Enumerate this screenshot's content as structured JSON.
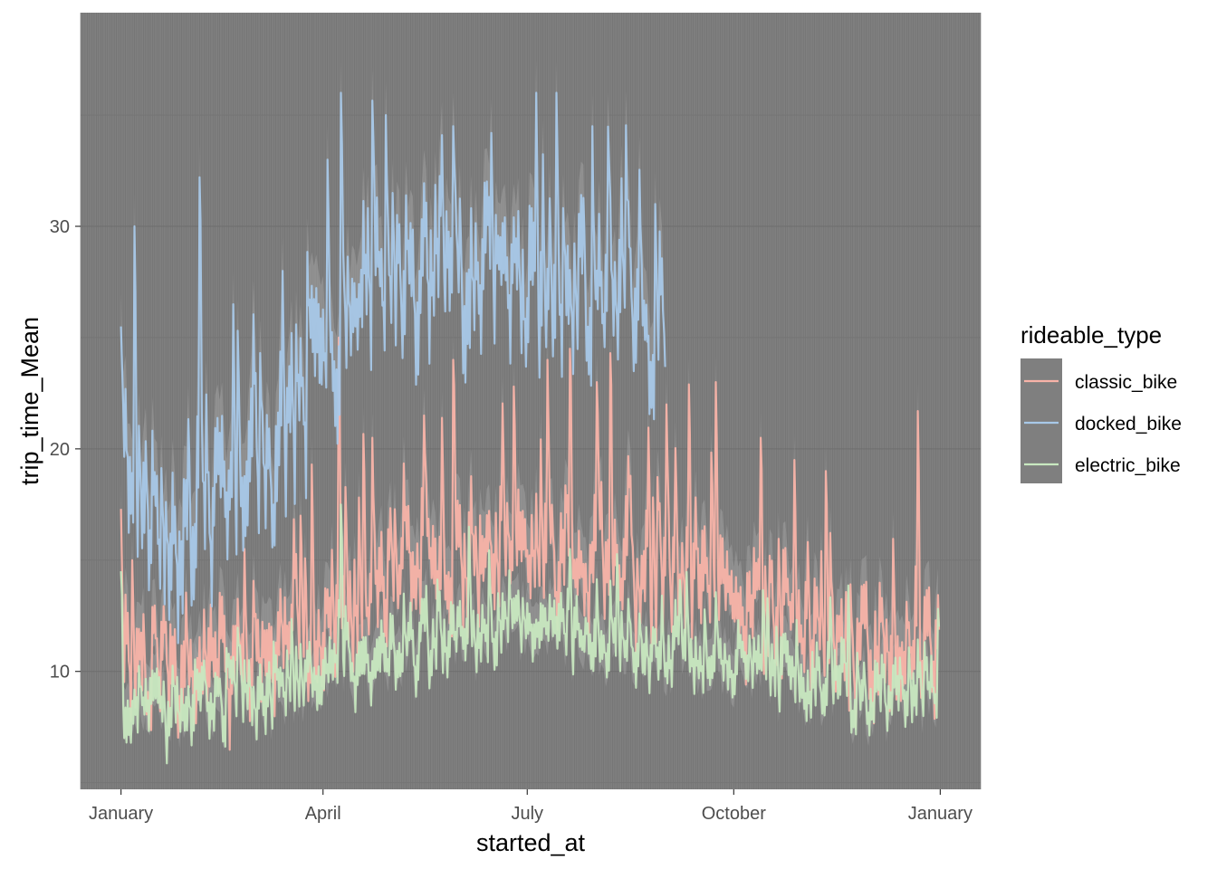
{
  "chart_data": {
    "type": "line",
    "title": "",
    "xlabel": "started_at",
    "ylabel": "trip_time_Mean",
    "x_ticks": [
      {
        "label": "January",
        "day": 0
      },
      {
        "label": "April",
        "day": 90
      },
      {
        "label": "July",
        "day": 181
      },
      {
        "label": "October",
        "day": 273
      },
      {
        "label": "January",
        "day": 365
      }
    ],
    "y_ticks": [
      10,
      20,
      30
    ],
    "xlim": [
      -18,
      383
    ],
    "ylim": [
      4.7,
      39.6
    ],
    "x_data_range": [
      0,
      364
    ],
    "grid": true,
    "panel_background": "#7f7f7f",
    "legend": {
      "title": "rideable_type",
      "position": "right",
      "background": "#7f7f7f"
    },
    "series": [
      {
        "name": "classic_bike",
        "color": "#f8b3a8",
        "x_start": 0,
        "x_end": 364,
        "baseline": [
          [
            0,
            11.5
          ],
          [
            30,
            11
          ],
          [
            60,
            11.5
          ],
          [
            90,
            13
          ],
          [
            120,
            15
          ],
          [
            150,
            16
          ],
          [
            180,
            16.5
          ],
          [
            210,
            16
          ],
          [
            240,
            15
          ],
          [
            270,
            14
          ],
          [
            300,
            13
          ],
          [
            330,
            11.5
          ],
          [
            364,
            12
          ]
        ],
        "amplitude": 3.2,
        "band_lower": 1.8,
        "band_upper": 1.2,
        "peaks": [
          [
            0,
            17.3
          ],
          [
            5,
            15
          ],
          [
            40,
            13
          ],
          [
            55,
            15.5
          ],
          [
            80,
            17
          ],
          [
            85,
            19.3
          ],
          [
            97,
            25
          ],
          [
            112,
            20.5
          ],
          [
            135,
            21.5
          ],
          [
            148,
            24
          ],
          [
            175,
            22.8
          ],
          [
            190,
            24
          ],
          [
            200,
            24.5
          ],
          [
            212,
            23
          ],
          [
            218,
            24.3
          ],
          [
            243,
            22
          ],
          [
            253,
            22.9
          ],
          [
            265,
            23
          ],
          [
            285,
            20.5
          ],
          [
            300,
            19.5
          ],
          [
            314,
            19
          ],
          [
            355,
            21.7
          ]
        ],
        "seed": 11
      },
      {
        "name": "docked_bike",
        "color": "#a8c8e8",
        "x_start": 0,
        "x_end": 242,
        "baseline": [
          [
            0,
            21
          ],
          [
            20,
            17
          ],
          [
            45,
            19
          ],
          [
            70,
            21
          ],
          [
            90,
            26
          ],
          [
            110,
            28.5
          ],
          [
            140,
            30
          ],
          [
            170,
            29
          ],
          [
            200,
            28.5
          ],
          [
            220,
            28
          ],
          [
            242,
            27
          ]
        ],
        "amplitude": 4.2,
        "band_lower": 1.5,
        "band_upper": 1.5,
        "peaks": [
          [
            0,
            25.5
          ],
          [
            6,
            30
          ],
          [
            35,
            32.2
          ],
          [
            50,
            26.5
          ],
          [
            72,
            28
          ],
          [
            92,
            33
          ],
          [
            98,
            36
          ],
          [
            118,
            35
          ],
          [
            148,
            34.5
          ],
          [
            165,
            34.2
          ],
          [
            185,
            36
          ],
          [
            194,
            36
          ],
          [
            210,
            34.5
          ],
          [
            238,
            31
          ]
        ],
        "seed": 23
      },
      {
        "name": "electric_bike",
        "color": "#c8e8c0",
        "x_start": 0,
        "x_end": 364,
        "baseline": [
          [
            0,
            9
          ],
          [
            30,
            8.8
          ],
          [
            60,
            9.5
          ],
          [
            90,
            10.5
          ],
          [
            120,
            11.5
          ],
          [
            150,
            12.2
          ],
          [
            180,
            12.5
          ],
          [
            210,
            12.3
          ],
          [
            240,
            11.8
          ],
          [
            270,
            11
          ],
          [
            300,
            10.2
          ],
          [
            330,
            9.5
          ],
          [
            364,
            10
          ]
        ],
        "amplitude": 2.0,
        "band_lower": 1.5,
        "band_upper": 0.8,
        "peaks": [
          [
            0,
            14.5
          ],
          [
            98,
            17.5
          ],
          [
            155,
            16.5
          ],
          [
            200,
            15.5
          ]
        ],
        "seed": 37
      }
    ]
  }
}
